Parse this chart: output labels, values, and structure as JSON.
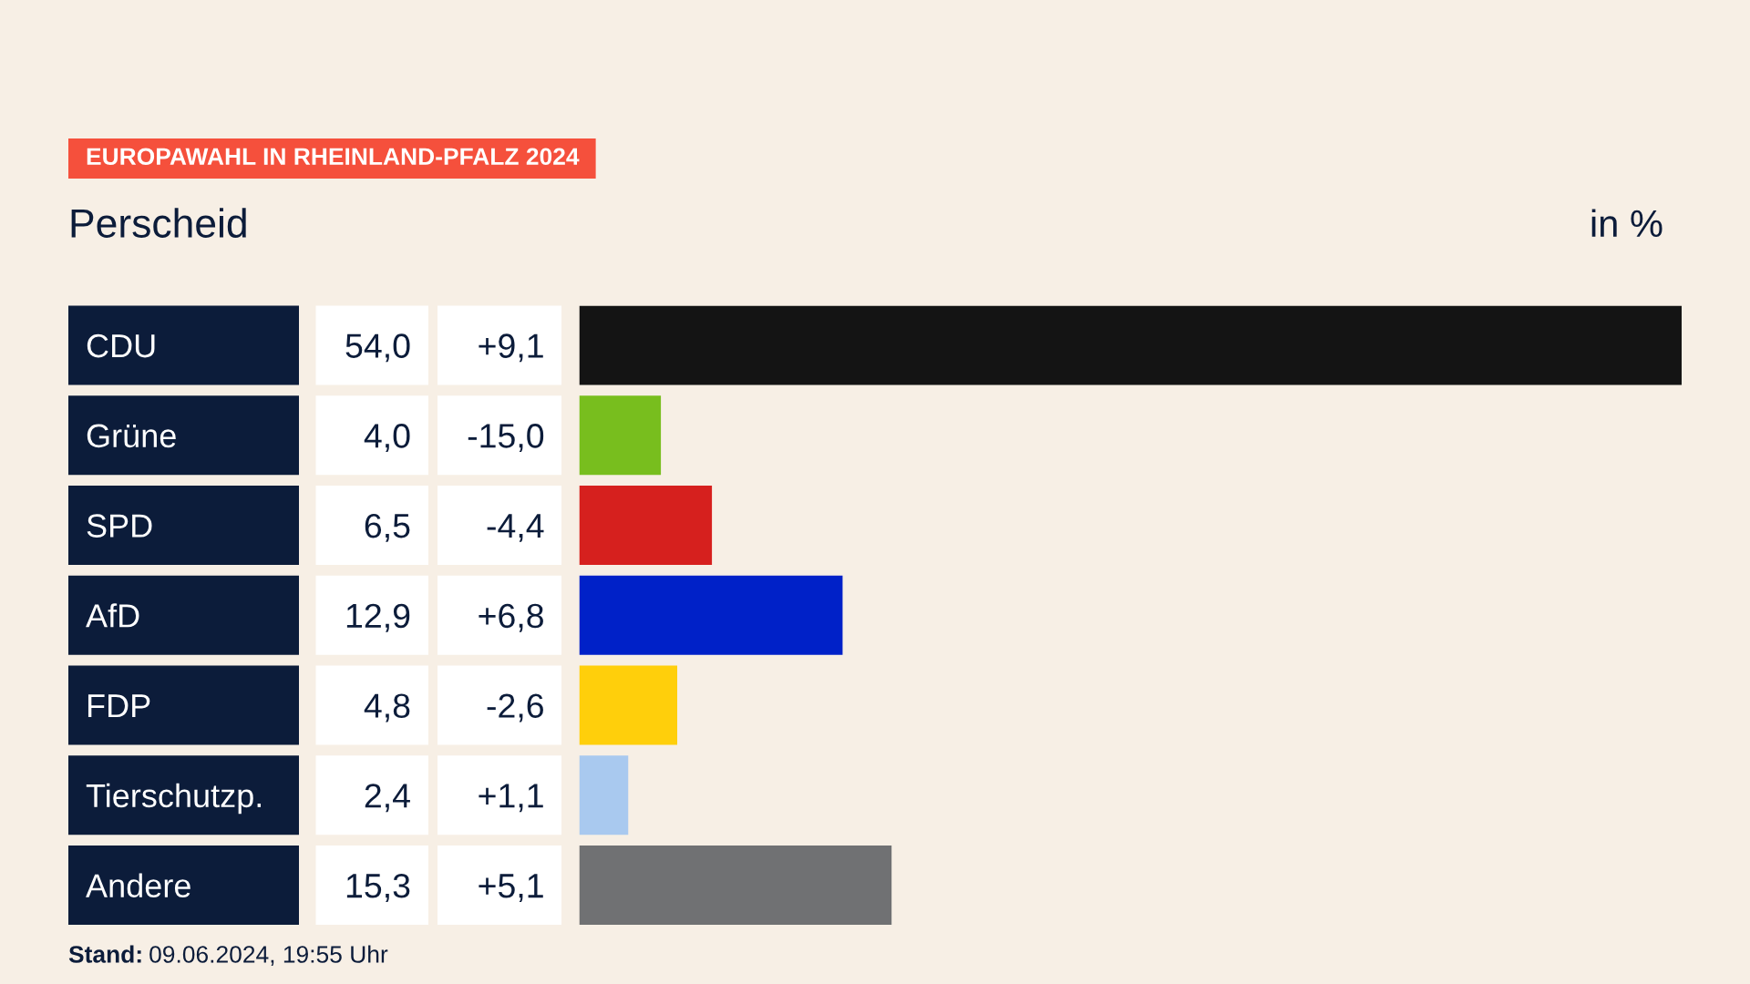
{
  "chart_data": {
    "type": "bar",
    "orientation": "horizontal",
    "title": "EUROPAWAHL IN RHEINLAND-PFALZ 2024",
    "subtitle": "Perscheid",
    "xlabel": "in %",
    "categories": [
      "CDU",
      "Grüne",
      "SPD",
      "AfD",
      "FDP",
      "Tierschutzp.",
      "Andere"
    ],
    "values": [
      54.0,
      4.0,
      6.5,
      12.9,
      4.8,
      2.4,
      15.3
    ],
    "colors": [
      "#141414",
      "#78be1e",
      "#d6201e",
      "#0021c8",
      "#ffcf0b",
      "#a9c9ef",
      "#707173"
    ],
    "value_labels": [
      "54,0",
      "4,0",
      "6,5",
      "12,9",
      "4,8",
      "2,4",
      "15,3"
    ],
    "annotations": [
      "+9,1",
      "-15,0",
      "-4,4",
      "+6,8",
      "-2,6",
      "+1,1",
      "+5,1",
      "Stand: 09.06.2024, 19:55 Uhr"
    ],
    "tick_labels": "y"
  }
}
